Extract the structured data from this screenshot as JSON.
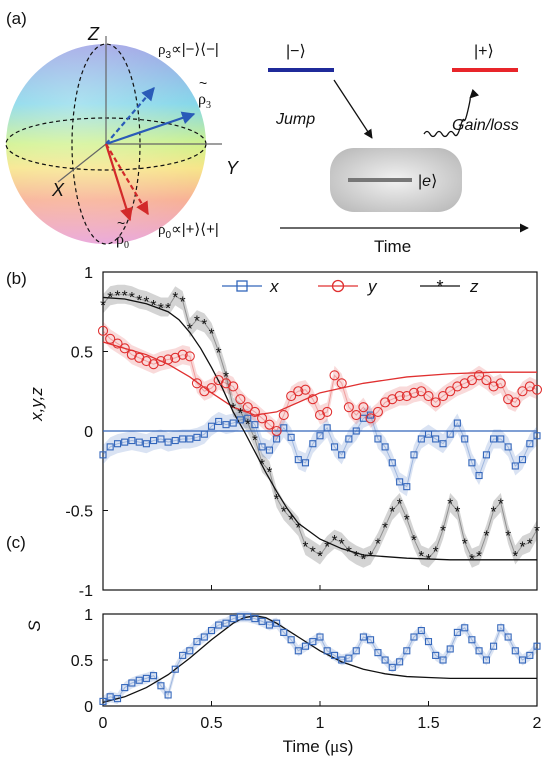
{
  "panel_a": {
    "label": "(a)",
    "axes": {
      "z": "Z",
      "y": "Y",
      "x": "X"
    },
    "rho3": {
      "prefix": "ρ",
      "sub": "3",
      "text": "∝|−⟩⟨−|"
    },
    "rho3_tilde": {
      "letter": "ρ",
      "tilde": "~",
      "sub": "3"
    },
    "rho0": {
      "prefix": "ρ",
      "sub": "0",
      "text": "∝|+⟩⟨+|"
    },
    "rho0_tilde": {
      "letter": "ρ",
      "tilde": "~",
      "sub": "0"
    },
    "ket_minus": "|−⟩",
    "ket_plus": "|+⟩",
    "ket_e_left": "|",
    "ket_e_mid": "e",
    "ket_e_right": "⟩",
    "jump": "Jump",
    "gain_loss": "Gain/loss",
    "time": "Time",
    "colors": {
      "minus_level": "#1f2a9a",
      "plus_level": "#e8252a",
      "rho3_arrow": "#2a5bb8",
      "rho0_arrow": "#d22a2a",
      "excited_level": "#777777"
    }
  },
  "panel_b": {
    "label": "(b)"
  },
  "panel_c": {
    "label": "(c)"
  },
  "chart_data": [
    {
      "type": "scatter",
      "panel": "(b)",
      "ylabel": "x,y,z",
      "xlim": [
        0,
        2
      ],
      "ylim": [
        -1,
        1
      ],
      "xticks": [
        "0",
        "0.5",
        "1",
        "1.5",
        "2"
      ],
      "yticks": [
        "1",
        "0.5",
        "0",
        "-0.5",
        "-1"
      ],
      "ytick_values": [
        1,
        0.5,
        0,
        -0.5,
        -1
      ],
      "legend_placement": "top-right",
      "series": [
        {
          "name": "x",
          "color": "#3366bb",
          "marker": "square",
          "x": [
            0.0,
            0.033,
            0.067,
            0.1,
            0.133,
            0.167,
            0.2,
            0.233,
            0.267,
            0.3,
            0.333,
            0.367,
            0.4,
            0.433,
            0.467,
            0.5,
            0.533,
            0.567,
            0.6,
            0.633,
            0.667,
            0.7,
            0.733,
            0.767,
            0.8,
            0.833,
            0.867,
            0.9,
            0.933,
            0.967,
            1.0,
            1.033,
            1.067,
            1.1,
            1.133,
            1.167,
            1.2,
            1.233,
            1.267,
            1.3,
            1.333,
            1.367,
            1.4,
            1.433,
            1.467,
            1.5,
            1.533,
            1.567,
            1.6,
            1.633,
            1.667,
            1.7,
            1.733,
            1.767,
            1.8,
            1.833,
            1.867,
            1.9,
            1.933,
            1.967,
            2.0
          ],
          "y": [
            -0.15,
            -0.1,
            -0.08,
            -0.07,
            -0.06,
            -0.07,
            -0.08,
            -0.06,
            -0.05,
            -0.07,
            -0.06,
            -0.05,
            -0.05,
            -0.04,
            -0.02,
            0.03,
            0.06,
            0.04,
            0.05,
            0.07,
            0.08,
            0.04,
            -0.1,
            -0.12,
            -0.05,
            0.02,
            -0.04,
            -0.18,
            -0.2,
            -0.08,
            -0.03,
            0.02,
            -0.1,
            -0.15,
            -0.05,
            0.0,
            0.08,
            0.1,
            -0.05,
            -0.1,
            -0.2,
            -0.32,
            -0.35,
            -0.15,
            -0.05,
            -0.02,
            -0.05,
            -0.08,
            -0.02,
            0.05,
            -0.05,
            -0.2,
            -0.28,
            -0.15,
            -0.05,
            -0.05,
            -0.1,
            -0.22,
            -0.18,
            -0.08,
            -0.03
          ]
        },
        {
          "name": "y",
          "color": "#e03030",
          "marker": "circle",
          "x": [
            0.0,
            0.033,
            0.067,
            0.1,
            0.133,
            0.167,
            0.2,
            0.233,
            0.267,
            0.3,
            0.333,
            0.367,
            0.4,
            0.433,
            0.467,
            0.5,
            0.533,
            0.567,
            0.6,
            0.633,
            0.667,
            0.7,
            0.733,
            0.767,
            0.8,
            0.833,
            0.867,
            0.9,
            0.933,
            0.967,
            1.0,
            1.033,
            1.067,
            1.1,
            1.133,
            1.167,
            1.2,
            1.233,
            1.267,
            1.3,
            1.333,
            1.367,
            1.4,
            1.433,
            1.467,
            1.5,
            1.533,
            1.567,
            1.6,
            1.633,
            1.667,
            1.7,
            1.733,
            1.767,
            1.8,
            1.833,
            1.867,
            1.9,
            1.933,
            1.967,
            2.0
          ],
          "y": [
            0.63,
            0.58,
            0.55,
            0.52,
            0.48,
            0.46,
            0.44,
            0.42,
            0.44,
            0.45,
            0.46,
            0.48,
            0.47,
            0.3,
            0.25,
            0.27,
            0.32,
            0.3,
            0.28,
            0.2,
            0.15,
            0.12,
            0.08,
            0.04,
            0.0,
            0.1,
            0.22,
            0.25,
            0.26,
            0.2,
            0.1,
            0.12,
            0.35,
            0.3,
            0.15,
            0.1,
            0.15,
            0.08,
            0.12,
            0.18,
            0.2,
            0.22,
            0.22,
            0.24,
            0.25,
            0.22,
            0.18,
            0.22,
            0.25,
            0.28,
            0.3,
            0.32,
            0.35,
            0.32,
            0.28,
            0.3,
            0.2,
            0.18,
            0.25,
            0.28,
            0.26
          ]
        },
        {
          "name": "z",
          "color": "#111111",
          "marker": "star",
          "x": [
            0.0,
            0.033,
            0.067,
            0.1,
            0.133,
            0.167,
            0.2,
            0.233,
            0.267,
            0.3,
            0.333,
            0.367,
            0.4,
            0.433,
            0.467,
            0.5,
            0.533,
            0.567,
            0.6,
            0.633,
            0.667,
            0.7,
            0.733,
            0.767,
            0.8,
            0.833,
            0.867,
            0.9,
            0.933,
            0.967,
            1.0,
            1.033,
            1.067,
            1.1,
            1.133,
            1.167,
            1.2,
            1.233,
            1.267,
            1.3,
            1.333,
            1.367,
            1.4,
            1.433,
            1.467,
            1.5,
            1.533,
            1.567,
            1.6,
            1.633,
            1.667,
            1.7,
            1.733,
            1.767,
            1.8,
            1.833,
            1.867,
            1.9,
            1.933,
            1.967,
            2.0
          ],
          "y": [
            0.8,
            0.85,
            0.86,
            0.86,
            0.85,
            0.83,
            0.82,
            0.8,
            0.78,
            0.78,
            0.85,
            0.82,
            0.65,
            0.7,
            0.68,
            0.62,
            0.5,
            0.35,
            0.15,
            0.12,
            0.05,
            -0.05,
            -0.2,
            -0.25,
            -0.42,
            -0.5,
            -0.55,
            -0.6,
            -0.72,
            -0.75,
            -0.78,
            -0.72,
            -0.68,
            -0.7,
            -0.75,
            -0.78,
            -0.8,
            -0.78,
            -0.7,
            -0.6,
            -0.5,
            -0.45,
            -0.55,
            -0.68,
            -0.78,
            -0.8,
            -0.75,
            -0.62,
            -0.45,
            -0.5,
            -0.7,
            -0.8,
            -0.78,
            -0.65,
            -0.5,
            -0.45,
            -0.65,
            -0.78,
            -0.72,
            -0.7,
            -0.62
          ]
        }
      ],
      "fits": [
        {
          "color": "#3366bb",
          "x": [
            0,
            2
          ],
          "y": [
            0,
            0
          ]
        },
        {
          "color": "#e03030",
          "x": [
            0,
            0.1,
            0.2,
            0.3,
            0.4,
            0.5,
            0.6,
            0.7,
            0.8,
            0.9,
            1.0,
            1.2,
            1.4,
            1.6,
            1.8,
            2.0
          ],
          "y": [
            0.56,
            0.52,
            0.48,
            0.42,
            0.34,
            0.24,
            0.15,
            0.1,
            0.12,
            0.18,
            0.24,
            0.3,
            0.34,
            0.36,
            0.37,
            0.37
          ]
        },
        {
          "color": "#111111",
          "x": [
            0,
            0.1,
            0.2,
            0.3,
            0.35,
            0.4,
            0.45,
            0.5,
            0.55,
            0.6,
            0.65,
            0.7,
            0.75,
            0.8,
            0.85,
            0.9,
            1.0,
            1.1,
            1.2,
            1.4,
            1.6,
            1.8,
            2.0
          ],
          "y": [
            0.84,
            0.83,
            0.8,
            0.75,
            0.7,
            0.62,
            0.52,
            0.4,
            0.27,
            0.12,
            0.0,
            -0.13,
            -0.26,
            -0.38,
            -0.49,
            -0.58,
            -0.68,
            -0.74,
            -0.78,
            -0.8,
            -0.81,
            -0.81,
            -0.81
          ]
        }
      ]
    },
    {
      "type": "scatter",
      "panel": "(c)",
      "ylabel": "S",
      "xlabel_pre": "Time (",
      "xlabel_mu": "μ",
      "xlabel_post": "s)",
      "xlim": [
        0,
        2
      ],
      "ylim": [
        0,
        1
      ],
      "xticks": [
        "0",
        "0.5",
        "1",
        "1.5",
        "2"
      ],
      "yticks": [
        "1",
        "0.5",
        "0"
      ],
      "ytick_values": [
        1,
        0.5,
        0
      ],
      "series": [
        {
          "color": "#3366bb",
          "marker": "square",
          "x": [
            0.0,
            0.033,
            0.067,
            0.1,
            0.133,
            0.167,
            0.2,
            0.233,
            0.267,
            0.3,
            0.333,
            0.367,
            0.4,
            0.433,
            0.467,
            0.5,
            0.533,
            0.567,
            0.6,
            0.633,
            0.667,
            0.7,
            0.733,
            0.767,
            0.8,
            0.833,
            0.867,
            0.9,
            0.933,
            0.967,
            1.0,
            1.033,
            1.067,
            1.1,
            1.133,
            1.167,
            1.2,
            1.233,
            1.267,
            1.3,
            1.333,
            1.367,
            1.4,
            1.433,
            1.467,
            1.5,
            1.533,
            1.567,
            1.6,
            1.633,
            1.667,
            1.7,
            1.733,
            1.767,
            1.8,
            1.833,
            1.867,
            1.9,
            1.933,
            1.967,
            2.0
          ],
          "y": [
            0.05,
            0.1,
            0.08,
            0.2,
            0.25,
            0.28,
            0.3,
            0.33,
            0.22,
            0.12,
            0.4,
            0.55,
            0.6,
            0.7,
            0.75,
            0.82,
            0.88,
            0.9,
            0.95,
            0.97,
            0.97,
            0.95,
            0.92,
            0.88,
            0.9,
            0.8,
            0.72,
            0.6,
            0.65,
            0.7,
            0.75,
            0.6,
            0.55,
            0.5,
            0.52,
            0.6,
            0.75,
            0.72,
            0.58,
            0.5,
            0.42,
            0.48,
            0.6,
            0.75,
            0.82,
            0.7,
            0.55,
            0.5,
            0.62,
            0.8,
            0.85,
            0.72,
            0.6,
            0.5,
            0.65,
            0.85,
            0.75,
            0.6,
            0.5,
            0.55,
            0.65
          ]
        }
      ],
      "fits": [
        {
          "color": "#111111",
          "x": [
            0,
            0.1,
            0.2,
            0.3,
            0.4,
            0.5,
            0.6,
            0.65,
            0.7,
            0.75,
            0.8,
            0.9,
            1.0,
            1.1,
            1.2,
            1.3,
            1.4,
            1.5,
            1.6,
            1.8,
            2.0
          ],
          "y": [
            0.04,
            0.1,
            0.2,
            0.34,
            0.52,
            0.72,
            0.9,
            0.96,
            0.98,
            0.96,
            0.9,
            0.75,
            0.6,
            0.48,
            0.4,
            0.35,
            0.32,
            0.31,
            0.3,
            0.3,
            0.3
          ]
        }
      ]
    }
  ]
}
